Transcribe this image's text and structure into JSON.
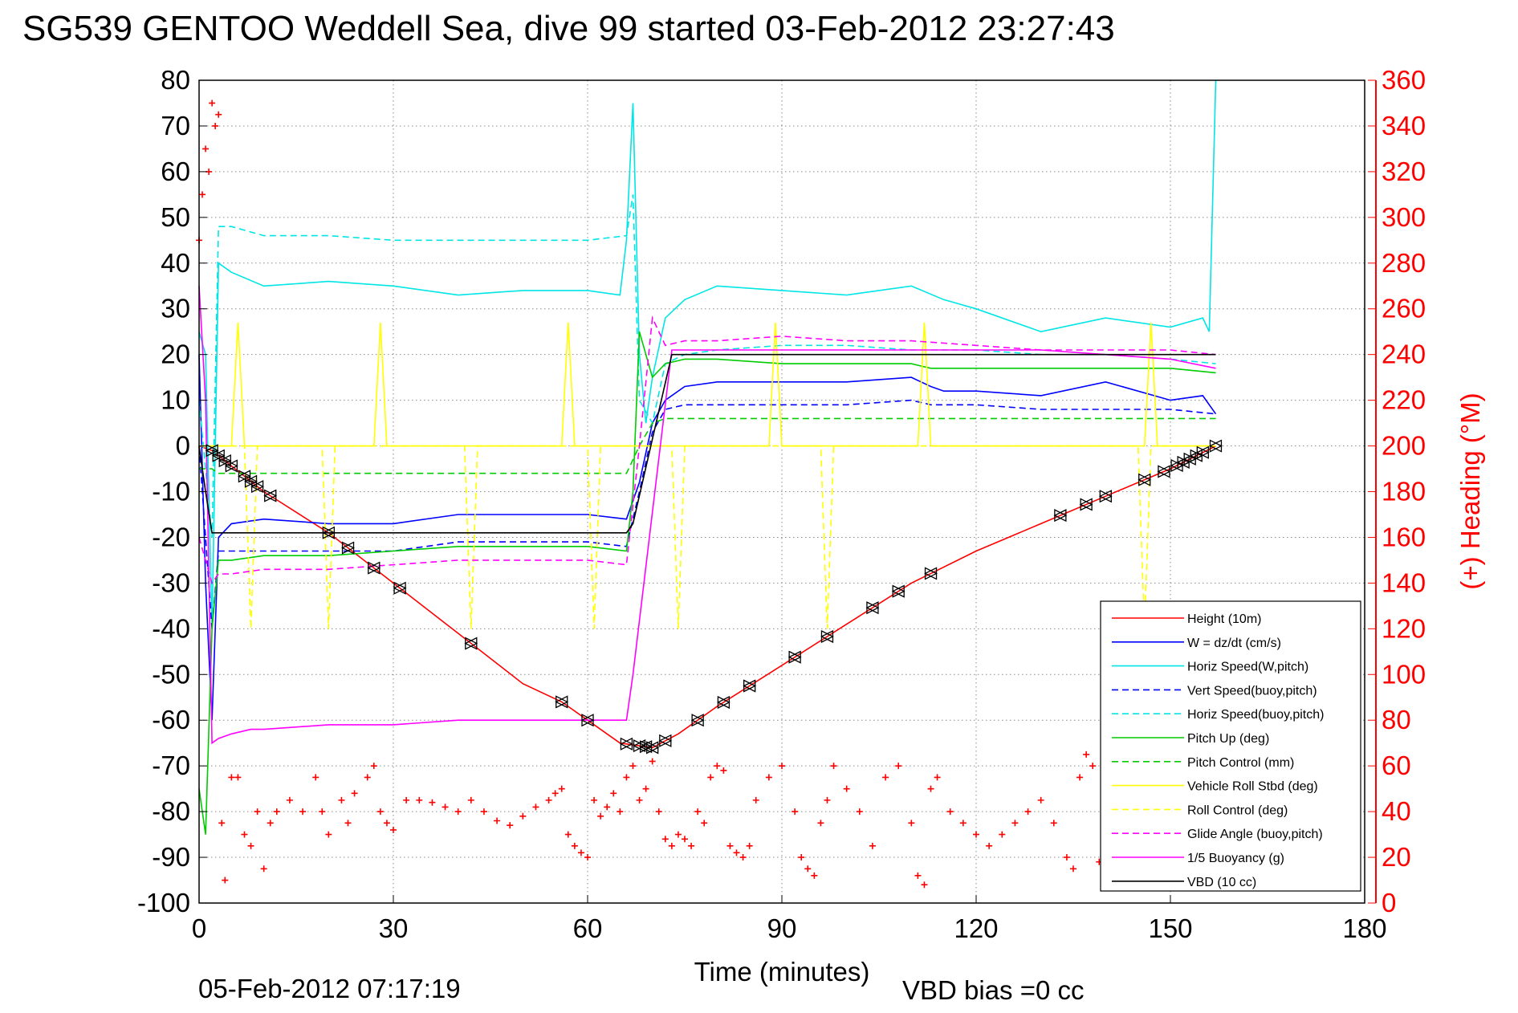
{
  "header": {
    "title": "SG539 GENTOO Weddell Sea, dive 99 started 03-Feb-2012 23:27:43"
  },
  "footer": {
    "timestamp": "05-Feb-2012 07:17:19",
    "vbd_bias": "VBD bias =0 cc"
  },
  "colors": {
    "left_axis": "#000000",
    "right_axis": "#ff0000"
  },
  "chart_data": {
    "type": "line",
    "title": "SG539 GENTOO Weddell Sea, dive 99 started 03-Feb-2012 23:27:43",
    "xlabel": "Time (minutes)",
    "ylabel": "",
    "y2label": "(+) Heading (°M)",
    "xlim": [
      0,
      180
    ],
    "ylim": [
      -100,
      80
    ],
    "y2lim": [
      0,
      360
    ],
    "xticks": [
      "0",
      "30",
      "60",
      "90",
      "120",
      "150",
      "180"
    ],
    "yticks": [
      "80",
      "70",
      "60",
      "50",
      "40",
      "30",
      "20",
      "10",
      "0",
      "-10",
      "-20",
      "-30",
      "-40",
      "-50",
      "-60",
      "-70",
      "-80",
      "-90",
      "-100"
    ],
    "y2ticks": [
      "360",
      "340",
      "320",
      "300",
      "280",
      "260",
      "240",
      "220",
      "200",
      "180",
      "160",
      "140",
      "120",
      "100",
      "80",
      "60",
      "40",
      "20",
      "0"
    ],
    "grid": true,
    "legend_position": "bottom-right",
    "series": [
      {
        "name": "Height (10m)",
        "color": "#ff0000",
        "style": "solid",
        "x": [
          0,
          2,
          10,
          20,
          30,
          40,
          50,
          56,
          60,
          65,
          70,
          74,
          80,
          90,
          100,
          110,
          120,
          130,
          140,
          150,
          157
        ],
        "y": [
          0,
          -1,
          -10,
          -19,
          -30,
          -41,
          -52,
          -56,
          -60,
          -65,
          -66,
          -63,
          -57,
          -48,
          -39,
          -30,
          -23,
          -17,
          -11,
          -5,
          0
        ]
      },
      {
        "name": "W = dz/dt (cm/s)",
        "color": "#0000ff",
        "style": "solid",
        "x": [
          0,
          1,
          2,
          3,
          5,
          10,
          20,
          30,
          40,
          50,
          60,
          66,
          68,
          70,
          72,
          75,
          80,
          90,
          100,
          110,
          113,
          115,
          120,
          130,
          140,
          150,
          155,
          157
        ],
        "y": [
          20,
          -30,
          -60,
          -20,
          -17,
          -16,
          -17,
          -17,
          -15,
          -15,
          -15,
          -16,
          -8,
          5,
          10,
          13,
          14,
          14,
          14,
          15,
          13,
          12,
          12,
          11,
          14,
          10,
          11,
          7
        ]
      },
      {
        "name": "Horiz Speed(W,pitch)",
        "color": "#00e5e5",
        "style": "solid",
        "x": [
          0,
          1,
          2,
          3,
          5,
          10,
          20,
          30,
          40,
          50,
          60,
          65,
          66,
          67,
          68,
          69,
          70,
          72,
          75,
          80,
          90,
          100,
          110,
          115,
          120,
          130,
          140,
          150,
          155,
          156,
          157
        ],
        "y": [
          25,
          20,
          -40,
          40,
          38,
          35,
          36,
          35,
          33,
          34,
          34,
          33,
          45,
          75,
          20,
          5,
          15,
          28,
          32,
          35,
          34,
          33,
          35,
          32,
          30,
          25,
          28,
          26,
          28,
          25,
          80
        ]
      },
      {
        "name": "Vert Speed(buoy,pitch)",
        "color": "#0000ff",
        "style": "dashed",
        "x": [
          0,
          2,
          3,
          5,
          10,
          20,
          30,
          40,
          50,
          60,
          66,
          68,
          70,
          72,
          75,
          80,
          90,
          100,
          110,
          113,
          120,
          130,
          140,
          150,
          157
        ],
        "y": [
          0,
          -40,
          -23,
          -23,
          -23,
          -23,
          -23,
          -21,
          -21,
          -21,
          -22,
          -10,
          3,
          8,
          9,
          9,
          9,
          9,
          10,
          9,
          9,
          8,
          8,
          8,
          7
        ]
      },
      {
        "name": "Horiz Speed(buoy,pitch)",
        "color": "#00e5e5",
        "style": "dashed",
        "x": [
          0,
          2,
          3,
          5,
          10,
          20,
          30,
          40,
          50,
          60,
          66,
          67,
          68,
          70,
          72,
          75,
          80,
          90,
          100,
          110,
          120,
          130,
          140,
          150,
          157
        ],
        "y": [
          10,
          -20,
          48,
          48,
          46,
          46,
          45,
          45,
          45,
          45,
          46,
          55,
          10,
          5,
          18,
          20,
          21,
          22,
          22,
          21,
          21,
          20,
          20,
          19,
          18
        ]
      },
      {
        "name": "Pitch Up (deg)",
        "color": "#00cc00",
        "style": "solid",
        "x": [
          0,
          1,
          2,
          3,
          5,
          10,
          20,
          30,
          40,
          50,
          60,
          66,
          67,
          68,
          70,
          72,
          75,
          80,
          90,
          100,
          110,
          113,
          120,
          130,
          140,
          150,
          157
        ],
        "y": [
          -75,
          -85,
          -40,
          -25,
          -25,
          -24,
          -24,
          -23,
          -22,
          -22,
          -22,
          -23,
          -10,
          25,
          15,
          18,
          19,
          19,
          18,
          18,
          18,
          17,
          17,
          17,
          17,
          17,
          16
        ]
      },
      {
        "name": "Pitch Control (mm)",
        "color": "#00cc00",
        "style": "dashed",
        "x": [
          0,
          2,
          3,
          5,
          10,
          20,
          30,
          40,
          50,
          60,
          66,
          68,
          70,
          72,
          75,
          80,
          90,
          100,
          110,
          120,
          130,
          140,
          150,
          157
        ],
        "y": [
          -5,
          -5,
          -6,
          -6,
          -6,
          -6,
          -6,
          -6,
          -6,
          -6,
          -6,
          0,
          5,
          6,
          6,
          6,
          6,
          6,
          6,
          6,
          6,
          6,
          6,
          6
        ]
      },
      {
        "name": "Vehicle Roll Stbd (deg)",
        "color": "#ffff00",
        "style": "solid",
        "x": [
          0,
          5,
          6,
          7,
          20,
          27,
          28,
          29,
          40,
          56,
          57,
          58,
          65,
          70,
          88,
          89,
          90,
          100,
          111,
          112,
          113,
          130,
          146,
          147,
          148,
          155,
          157
        ],
        "y": [
          0,
          0,
          27,
          0,
          0,
          0,
          27,
          0,
          0,
          0,
          27,
          0,
          0,
          0,
          0,
          27,
          0,
          0,
          0,
          27,
          0,
          0,
          0,
          27,
          0,
          0,
          0
        ]
      },
      {
        "name": "Roll Control (deg)",
        "color": "#ffff00",
        "style": "dashed",
        "x": [
          0,
          7,
          8,
          9,
          19,
          20,
          21,
          41,
          42,
          43,
          60,
          61,
          62,
          73,
          74,
          75,
          96,
          97,
          98,
          120,
          145,
          146,
          147,
          157
        ],
        "y": [
          0,
          0,
          -40,
          0,
          0,
          -40,
          0,
          0,
          -40,
          0,
          0,
          -40,
          0,
          0,
          -40,
          0,
          0,
          -40,
          0,
          0,
          0,
          -40,
          0,
          0
        ]
      },
      {
        "name": "Glide Angle (buoy,pitch)",
        "color": "#ff00ff",
        "style": "dashed",
        "x": [
          0,
          2,
          3,
          5,
          10,
          20,
          30,
          40,
          50,
          60,
          66,
          68,
          70,
          72,
          75,
          80,
          90,
          100,
          110,
          120,
          130,
          140,
          150,
          157
        ],
        "y": [
          -20,
          -30,
          -28,
          -28,
          -27,
          -27,
          -26,
          -25,
          -25,
          -25,
          -26,
          0,
          28,
          22,
          23,
          23,
          24,
          23,
          23,
          22,
          21,
          21,
          21,
          20
        ]
      },
      {
        "name": "1/5 Buoyancy (g)",
        "color": "#ff00ff",
        "style": "solid",
        "x": [
          0,
          1,
          2,
          3,
          5,
          8,
          10,
          20,
          30,
          40,
          50,
          60,
          66,
          67,
          73,
          75,
          80,
          90,
          100,
          110,
          120,
          130,
          140,
          150,
          157
        ],
        "y": [
          35,
          10,
          -65,
          -64,
          -63,
          -62,
          -62,
          -61,
          -61,
          -60,
          -60,
          -60,
          -60,
          -50,
          21,
          21,
          21,
          21,
          21,
          21,
          21,
          21,
          20,
          19,
          17
        ]
      },
      {
        "name": "VBD (10 cc)",
        "color": "#000000",
        "style": "solid",
        "x": [
          0,
          1,
          2,
          10,
          30,
          50,
          66,
          67,
          73,
          80,
          110,
          120,
          140,
          157
        ],
        "y": [
          0,
          -10,
          -19,
          -19,
          -19,
          -19,
          -19,
          -17,
          20,
          20,
          20,
          20,
          20,
          20
        ]
      }
    ],
    "heading": {
      "name": "(+) Heading (°M)",
      "color": "#ff0000",
      "axis": "right",
      "marker": "+",
      "x": [
        0,
        0.5,
        1,
        1.5,
        2,
        2.5,
        3,
        3.5,
        4,
        5,
        6,
        7,
        8,
        9,
        10,
        11,
        12,
        14,
        16,
        18,
        19,
        20,
        22,
        23,
        24,
        26,
        27,
        28,
        29,
        30,
        32,
        34,
        36,
        38,
        40,
        42,
        44,
        46,
        48,
        50,
        52,
        54,
        55,
        56,
        57,
        58,
        59,
        60,
        61,
        62,
        63,
        64,
        65,
        66,
        67,
        68,
        69,
        70,
        71,
        72,
        73,
        74,
        75,
        76,
        77,
        78,
        79,
        80,
        81,
        82,
        83,
        84,
        85,
        86,
        88,
        90,
        92,
        93,
        94,
        95,
        96,
        97,
        98,
        100,
        102,
        104,
        106,
        108,
        110,
        111,
        112,
        113,
        114,
        116,
        118,
        120,
        122,
        124,
        126,
        128,
        130,
        132,
        134,
        135,
        136,
        137,
        138,
        139
      ],
      "y": [
        290,
        310,
        330,
        320,
        350,
        340,
        345,
        35,
        10,
        55,
        55,
        30,
        25,
        40,
        15,
        35,
        40,
        45,
        40,
        55,
        40,
        30,
        45,
        35,
        48,
        55,
        60,
        40,
        35,
        32,
        45,
        45,
        44,
        42,
        40,
        45,
        40,
        36,
        34,
        38,
        42,
        45,
        48,
        50,
        30,
        25,
        22,
        20,
        45,
        38,
        42,
        48,
        40,
        55,
        60,
        45,
        50,
        62,
        40,
        28,
        25,
        30,
        28,
        25,
        40,
        35,
        55,
        60,
        58,
        25,
        22,
        20,
        25,
        45,
        55,
        60,
        40,
        20,
        15,
        12,
        35,
        45,
        60,
        50,
        40,
        25,
        55,
        60,
        35,
        12,
        8,
        50,
        55,
        40,
        35,
        30,
        25,
        30,
        35,
        40,
        45,
        35,
        20,
        15,
        55,
        65,
        60,
        18
      ]
    },
    "height_markers_x": [
      2,
      3,
      4,
      5,
      7,
      8,
      9,
      11,
      20,
      23,
      27,
      31,
      42,
      56,
      60,
      66,
      68,
      69,
      70,
      72,
      77,
      81,
      85,
      92,
      97,
      104,
      108,
      113,
      133,
      137,
      140,
      146,
      149,
      151,
      152,
      153,
      154,
      155,
      157
    ]
  }
}
